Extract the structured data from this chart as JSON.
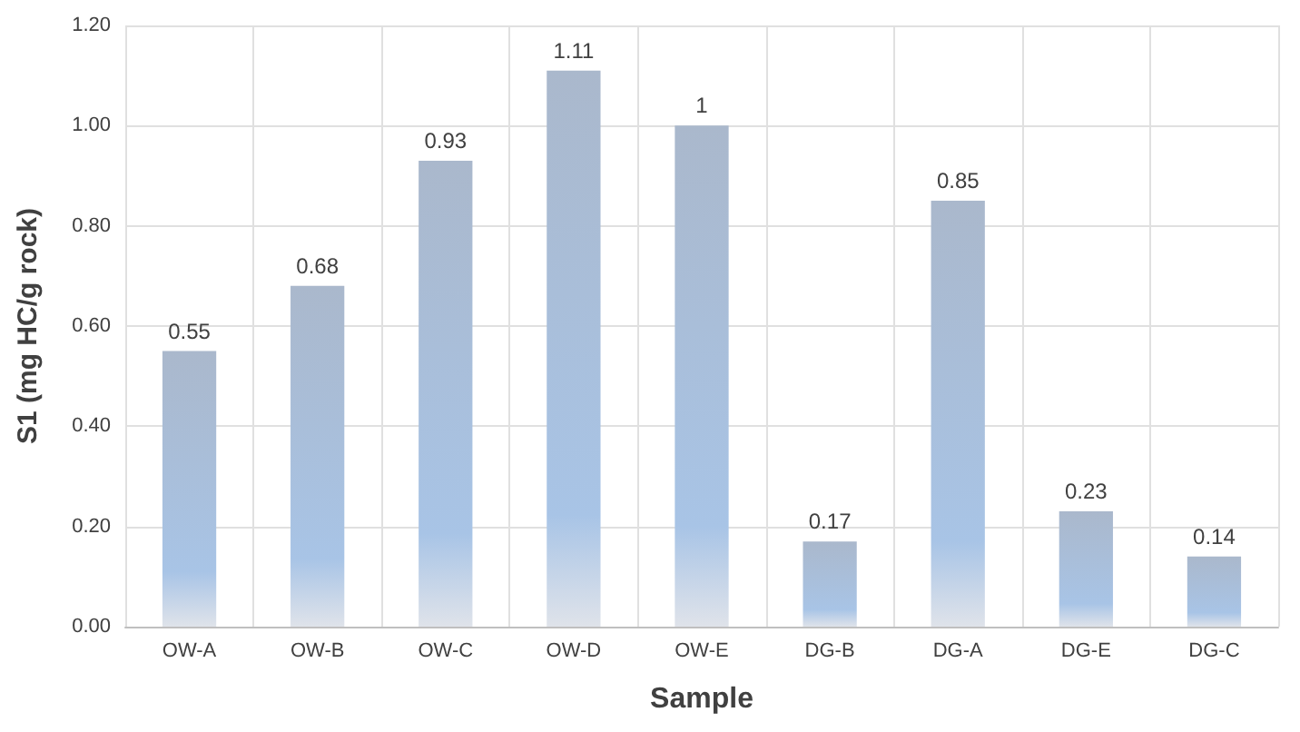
{
  "chart_data": {
    "type": "bar",
    "xlabel": "Sample",
    "ylabel": "S1 (mg HC/g rock)",
    "categories": [
      "OW-A",
      "OW-B",
      "OW-C",
      "OW-D",
      "OW-E",
      "DG-B",
      "DG-A",
      "DG-E",
      "DG-C"
    ],
    "values": [
      0.55,
      0.68,
      0.93,
      1.11,
      1,
      0.17,
      0.85,
      0.23,
      0.14
    ],
    "color": "#aab8cc",
    "ylim": [
      0,
      1.2
    ],
    "yticks": [
      {
        "value": 0,
        "label": "0.00"
      },
      {
        "value": 0.2,
        "label": "0.20"
      },
      {
        "value": 0.4,
        "label": "0.40"
      },
      {
        "value": 0.6,
        "label": "0.60"
      },
      {
        "value": 0.8,
        "label": "0.80"
      },
      {
        "value": 1,
        "label": "1.00"
      },
      {
        "value": 1.2,
        "label": "1.20"
      }
    ],
    "grid": true,
    "data_labels": true
  }
}
